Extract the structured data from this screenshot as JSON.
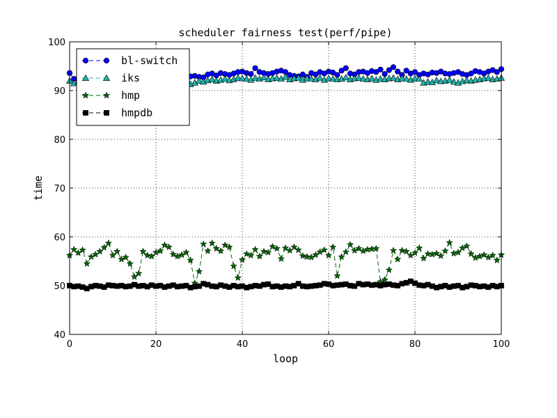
{
  "chart_data": {
    "type": "line",
    "title": "scheduler fairness test(perf/pipe)",
    "xlabel": "loop",
    "ylabel": "time",
    "xlim": [
      0,
      100
    ],
    "ylim": [
      40,
      100
    ],
    "xticks": [
      0,
      20,
      40,
      60,
      80,
      100
    ],
    "yticks": [
      40,
      50,
      60,
      70,
      80,
      90,
      100
    ],
    "xtick_labels": [
      "0",
      "20",
      "40",
      "60",
      "80",
      "100"
    ],
    "ytick_labels": [
      "40",
      "50",
      "60",
      "70",
      "80",
      "90",
      "100"
    ],
    "grid": true,
    "legend_position": "upper-left",
    "x": [
      0,
      1,
      2,
      3,
      4,
      5,
      6,
      7,
      8,
      9,
      10,
      11,
      12,
      13,
      14,
      15,
      16,
      17,
      18,
      19,
      20,
      21,
      22,
      23,
      24,
      25,
      26,
      27,
      28,
      29,
      30,
      31,
      32,
      33,
      34,
      35,
      36,
      37,
      38,
      39,
      40,
      41,
      42,
      43,
      44,
      45,
      46,
      47,
      48,
      49,
      50,
      51,
      52,
      53,
      54,
      55,
      56,
      57,
      58,
      59,
      60,
      61,
      62,
      63,
      64,
      65,
      66,
      67,
      68,
      69,
      70,
      71,
      72,
      73,
      74,
      75,
      76,
      77,
      78,
      79,
      80,
      81,
      82,
      83,
      84,
      85,
      86,
      87,
      88,
      89,
      90,
      91,
      92,
      93,
      94,
      95,
      96,
      97,
      98,
      99,
      100
    ],
    "series": [
      {
        "name": "bl-switch",
        "color": "#0000ff",
        "marker": "circle",
        "values": [
          93.6,
          92.4,
          92.2,
          92.6,
          92.4,
          92.8,
          92.3,
          92.7,
          92.6,
          92.4,
          92.8,
          92.6,
          92.3,
          92.5,
          92.7,
          92.4,
          92.6,
          92.8,
          92.5,
          92.4,
          92.7,
          92.6,
          92.9,
          92.5,
          92.8,
          92.6,
          92.4,
          92.7,
          92.9,
          93.0,
          92.8,
          92.7,
          93.3,
          93.5,
          93.1,
          93.6,
          93.4,
          93.2,
          93.5,
          93.8,
          93.9,
          93.6,
          93.4,
          94.6,
          93.8,
          93.6,
          93.4,
          93.6,
          93.9,
          94.1,
          93.8,
          93.2,
          93.0,
          92.9,
          93.3,
          92.8,
          93.6,
          93.3,
          93.8,
          93.5,
          93.9,
          93.7,
          93.2,
          94.1,
          94.6,
          93.5,
          93.3,
          93.8,
          93.9,
          93.6,
          94.0,
          93.8,
          94.3,
          93.4,
          94.2,
          94.8,
          93.9,
          93.2,
          94.1,
          93.5,
          93.8,
          93.2,
          93.5,
          93.3,
          93.7,
          93.6,
          93.9,
          93.5,
          93.4,
          93.6,
          93.8,
          93.4,
          93.2,
          93.5,
          94.0,
          93.8,
          93.5,
          93.9,
          94.2,
          93.8,
          94.4
        ]
      },
      {
        "name": "iks",
        "color": "#20b2aa",
        "marker": "triangle",
        "values": [
          92.0,
          91.5,
          91.8,
          91.9,
          91.6,
          92.0,
          91.7,
          91.9,
          91.8,
          92.1,
          91.9,
          91.7,
          91.8,
          91.9,
          91.6,
          91.8,
          92.0,
          91.9,
          91.7,
          91.8,
          91.9,
          92.0,
          91.8,
          91.7,
          91.9,
          91.6,
          91.8,
          91.5,
          91.3,
          91.6,
          92.0,
          91.8,
          92.1,
          92.3,
          92.0,
          92.2,
          92.4,
          92.1,
          92.3,
          92.6,
          92.5,
          92.4,
          92.2,
          92.6,
          92.4,
          92.7,
          92.3,
          92.5,
          92.6,
          92.4,
          92.8,
          92.3,
          92.5,
          92.6,
          92.2,
          92.5,
          92.4,
          92.3,
          92.6,
          92.2,
          92.5,
          92.4,
          92.3,
          92.4,
          92.7,
          92.3,
          92.5,
          92.6,
          92.4,
          92.3,
          92.5,
          92.2,
          92.4,
          92.3,
          92.5,
          92.6,
          92.3,
          92.5,
          92.4,
          92.2,
          92.5,
          92.4,
          91.6,
          91.8,
          91.7,
          92.1,
          91.9,
          92.0,
          92.2,
          91.8,
          91.6,
          91.9,
          92.1,
          92.0,
          92.2,
          92.3,
          92.5,
          92.6,
          92.3,
          92.4,
          92.6
        ]
      },
      {
        "name": "hmp",
        "color": "#006400",
        "marker": "star",
        "values": [
          56.2,
          57.4,
          56.7,
          57.3,
          54.5,
          55.9,
          56.4,
          57.0,
          57.8,
          58.7,
          56.2,
          57.0,
          55.4,
          55.8,
          54.5,
          51.8,
          52.5,
          57.0,
          56.2,
          56.0,
          56.8,
          57.1,
          58.3,
          57.9,
          56.4,
          56.0,
          56.3,
          56.8,
          55.2,
          50.5,
          52.9,
          58.5,
          57.1,
          58.7,
          57.6,
          57.1,
          58.3,
          57.9,
          54.0,
          51.6,
          55.3,
          56.5,
          56.2,
          57.4,
          56.0,
          57.0,
          56.8,
          58.0,
          57.6,
          55.5,
          57.7,
          57.2,
          57.9,
          57.3,
          56.1,
          55.9,
          55.8,
          56.3,
          56.9,
          57.3,
          56.2,
          57.9,
          52.0,
          55.9,
          56.9,
          58.4,
          57.2,
          57.6,
          57.1,
          57.4,
          57.5,
          57.6,
          50.8,
          51.2,
          53.2,
          57.2,
          55.4,
          57.2,
          57.0,
          56.2,
          56.7,
          57.7,
          55.6,
          56.5,
          56.4,
          56.6,
          56.1,
          57.1,
          58.8,
          56.6,
          56.8,
          57.7,
          58.1,
          56.5,
          55.7,
          56.0,
          56.3,
          55.8,
          56.2,
          55.2,
          56.3
        ]
      },
      {
        "name": "hmpdb",
        "color": "#000000",
        "marker": "square",
        "values": [
          50.0,
          49.8,
          49.9,
          49.7,
          49.4,
          49.8,
          50.0,
          49.9,
          49.7,
          50.1,
          50.0,
          49.9,
          50.0,
          49.8,
          49.9,
          50.2,
          49.9,
          50.0,
          49.8,
          50.1,
          49.9,
          50.0,
          49.7,
          49.9,
          50.1,
          49.8,
          49.9,
          50.0,
          49.6,
          49.8,
          49.9,
          50.4,
          50.2,
          49.9,
          49.8,
          50.1,
          49.9,
          49.7,
          50.0,
          49.8,
          49.9,
          49.6,
          49.8,
          50.0,
          49.9,
          50.2,
          50.3,
          49.8,
          49.9,
          49.7,
          49.9,
          49.8,
          50.0,
          50.4,
          49.9,
          49.8,
          49.9,
          50.0,
          50.1,
          50.4,
          50.3,
          50.0,
          50.1,
          50.2,
          50.3,
          50.0,
          49.9,
          50.4,
          50.2,
          50.3,
          50.1,
          50.2,
          50.0,
          50.2,
          50.3,
          50.1,
          50.0,
          50.4,
          50.6,
          50.9,
          50.5,
          50.1,
          50.0,
          50.2,
          49.9,
          49.6,
          49.8,
          50.0,
          49.7,
          49.9,
          50.0,
          49.6,
          49.8,
          50.1,
          50.0,
          49.8,
          49.9,
          49.7,
          50.0,
          49.8,
          50.0
        ]
      }
    ]
  }
}
